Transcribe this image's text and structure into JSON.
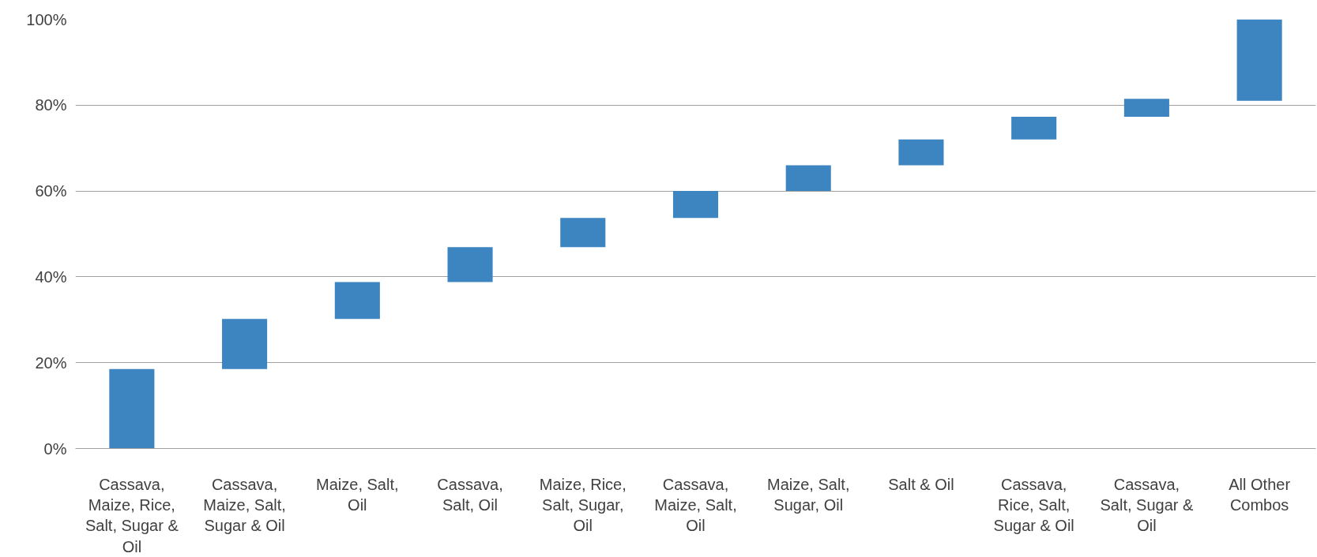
{
  "chart_data": {
    "type": "bar",
    "categories": [
      "Cassava, Maize, Rice, Salt, Sugar & Oil",
      "Cassava, Maize, Salt, Sugar & Oil",
      "Maize, Salt, Oil",
      "Cassava, Salt, Oil",
      "Maize, Rice, Salt, Sugar, Oil",
      "Cassava, Maize, Salt, Oil",
      "Maize, Salt, Sugar, Oil",
      "Salt & Oil",
      "Cassava, Rice, Salt, Sugar & Oil",
      "Cassava, Salt, Sugar & Oil",
      "All Other Combos"
    ],
    "base": [
      0,
      18.5,
      30.2,
      38.8,
      46.9,
      53.7,
      60.0,
      66.0,
      72.0,
      77.3,
      81.0
    ],
    "values": [
      18.5,
      11.7,
      8.6,
      8.1,
      6.8,
      6.3,
      6.0,
      6.0,
      5.3,
      4.2,
      19.0
    ],
    "color": "#3d85c0",
    "ylim": [
      0,
      100
    ],
    "yticks": [
      {
        "value": 0,
        "label": "0%"
      },
      {
        "value": 20,
        "label": "20%"
      },
      {
        "value": 40,
        "label": "40%"
      },
      {
        "value": 60,
        "label": "60%"
      },
      {
        "value": 80,
        "label": "80%"
      },
      {
        "value": 100,
        "label": "100%"
      }
    ],
    "grid": "y"
  }
}
